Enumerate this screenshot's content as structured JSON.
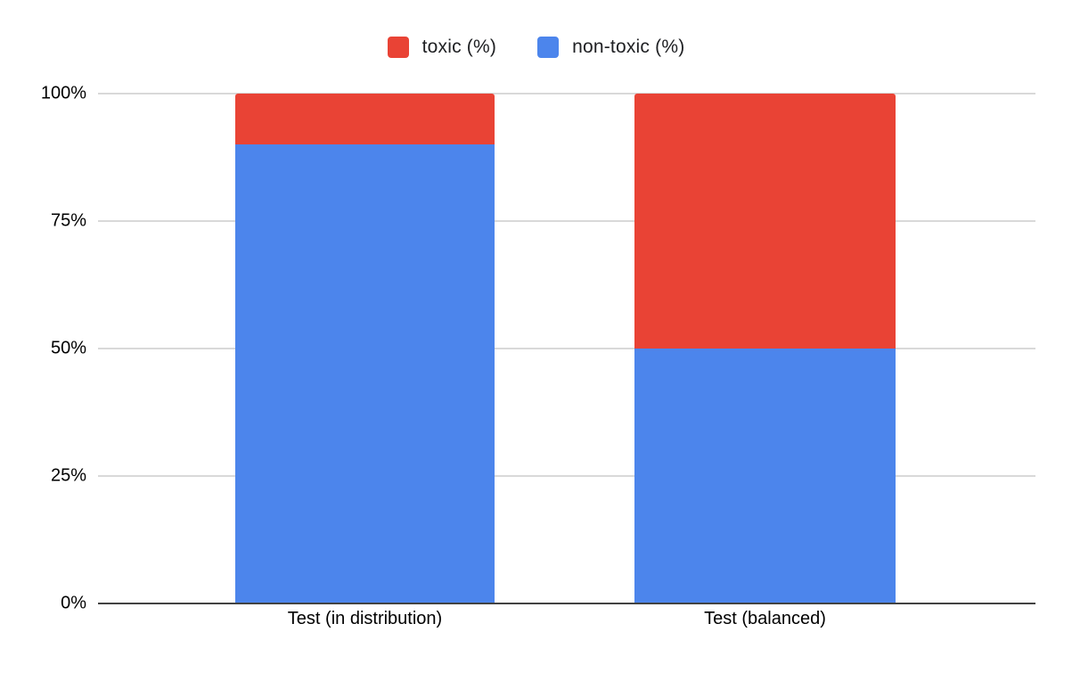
{
  "page": {
    "background": "#ffffff"
  },
  "colors": {
    "toxic": "#e94335",
    "non_toxic": "#4c85ec",
    "gridline": "#d9d9d9",
    "axis_baseline": "#424242",
    "text": "#000000"
  },
  "chart_data": {
    "type": "bar",
    "stacked": true,
    "percent_stacked": true,
    "title": "",
    "xlabel": "",
    "ylabel": "",
    "categories": [
      "Test (in distribution)",
      "Test (balanced)"
    ],
    "series": [
      {
        "name": "toxic (%)",
        "color": "#e94335",
        "values": [
          10,
          50
        ]
      },
      {
        "name": "non-toxic (%)",
        "color": "#4c85ec",
        "values": [
          90,
          50
        ]
      }
    ],
    "stack_order_bottom_to_top": [
      "non-toxic (%)",
      "toxic (%)"
    ],
    "ylim": [
      0,
      100
    ],
    "yticks": [
      {
        "value": 0,
        "label": "0%"
      },
      {
        "value": 25,
        "label": "25%"
      },
      {
        "value": 50,
        "label": "50%"
      },
      {
        "value": 75,
        "label": "75%"
      },
      {
        "value": 100,
        "label": "100%"
      }
    ],
    "grid": true,
    "legend_position": "top-center"
  }
}
